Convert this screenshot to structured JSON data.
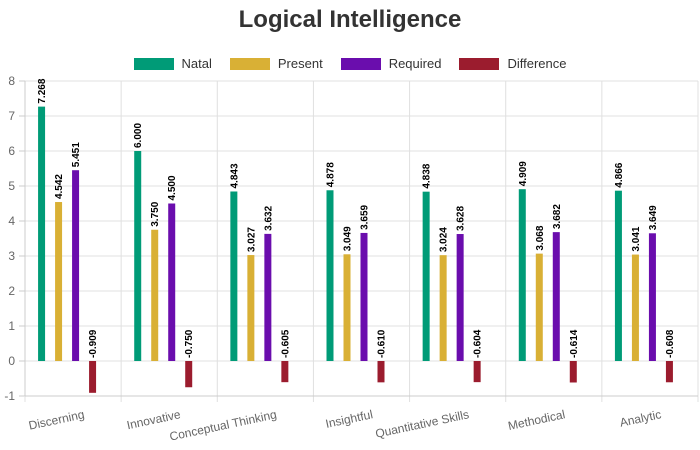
{
  "chart_data": {
    "type": "bar",
    "title": "Logical Intelligence",
    "categories": [
      "Discerning",
      "Innovative",
      "Conceptual Thinking",
      "Insightful",
      "Quantitative Skills",
      "Methodical",
      "Analytic"
    ],
    "series": [
      {
        "name": "Natal",
        "color": "#009b77",
        "values": [
          7.268,
          6.0,
          4.843,
          4.878,
          4.838,
          4.909,
          4.866
        ],
        "labels": [
          "7.268",
          "6.000",
          "4.843",
          "4.878",
          "4.838",
          "4.909",
          "4.866"
        ]
      },
      {
        "name": "Present",
        "color": "#d9b035",
        "values": [
          4.542,
          3.75,
          3.027,
          3.049,
          3.024,
          3.068,
          3.041
        ],
        "labels": [
          "4.542",
          "3.750",
          "3.027",
          "3.049",
          "3.024",
          "3.068",
          "3.041"
        ]
      },
      {
        "name": "Required",
        "color": "#6a0dad",
        "values": [
          5.451,
          4.5,
          3.632,
          3.659,
          3.628,
          3.682,
          3.649
        ],
        "labels": [
          "5.451",
          "4.500",
          "3.632",
          "3.659",
          "3.628",
          "3.682",
          "3.649"
        ]
      },
      {
        "name": "Difference",
        "color": "#9b1c2e",
        "values": [
          -0.909,
          -0.75,
          -0.605,
          -0.61,
          -0.604,
          -0.614,
          -0.608
        ],
        "labels": [
          "-0.909",
          "-0.750",
          "-0.605",
          "-0.610",
          "-0.604",
          "-0.614",
          "-0.608"
        ]
      }
    ],
    "ylim": [
      -1,
      8
    ],
    "yticks": [
      -1,
      0,
      1,
      2,
      3,
      4,
      5,
      6,
      7,
      8
    ],
    "ytick_labels": [
      "-1",
      "0",
      "1",
      "2",
      "3",
      "4",
      "5",
      "6",
      "7",
      "8"
    ],
    "grid": true,
    "legend_position": "top-center"
  }
}
